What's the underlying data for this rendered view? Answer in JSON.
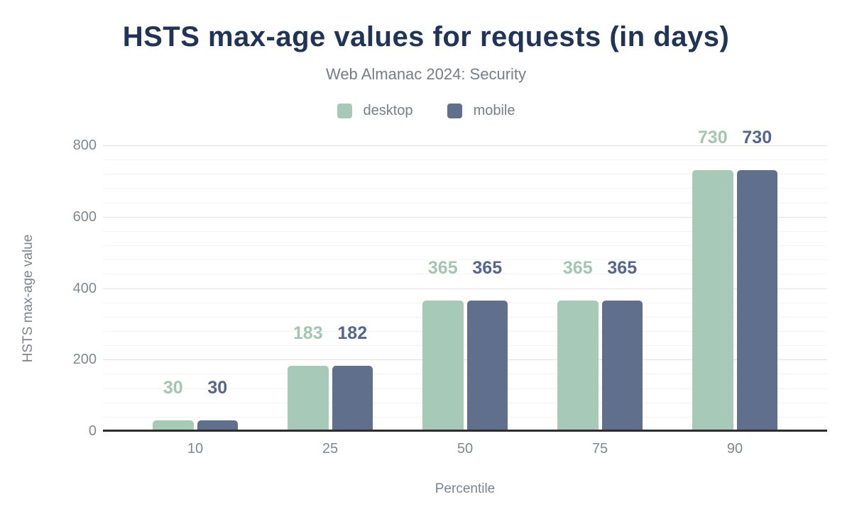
{
  "header": {
    "title": "HSTS max-age values for requests (in days)",
    "subtitle": "Web Almanac 2024: Security"
  },
  "chart_data": {
    "type": "bar",
    "title": "HSTS max-age values for requests (in days)",
    "subtitle": "Web Almanac 2024: Security",
    "categories": [
      "10",
      "25",
      "50",
      "75",
      "90"
    ],
    "series": [
      {
        "name": "desktop",
        "color": "#a7cab8",
        "label_color": "#a2c6b1",
        "values": [
          30,
          183,
          365,
          365,
          730
        ]
      },
      {
        "name": "mobile",
        "color": "#60708c",
        "label_color": "#54668b",
        "values": [
          30,
          182,
          365,
          365,
          730
        ]
      }
    ],
    "xlabel": "Percentile",
    "ylabel": "HSTS max-age value",
    "ylim": [
      0,
      800
    ],
    "yticks": [
      0,
      200,
      400,
      600,
      800
    ],
    "minor_tick_step": 40,
    "grid": true,
    "legend_position": "top",
    "data_labels": true
  },
  "colors": {
    "title": "#203457",
    "subtitle_gray": "#767d89",
    "tick_gray": "#82878f",
    "axis_title_gray": "#7d838c",
    "baseline": "#2d2d2d",
    "gridline_minor": "#f4f4f4",
    "gridline_major": "#e2e2e2",
    "background": "#ffffff"
  }
}
